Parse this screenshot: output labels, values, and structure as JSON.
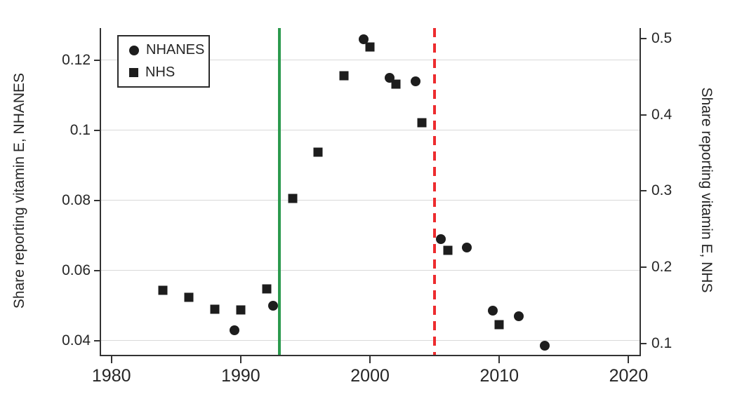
{
  "figure": {
    "background": "#ffffff"
  },
  "legend": {
    "position": "top-left-inside",
    "items": [
      {
        "marker": "circle",
        "label": "NHANES"
      },
      {
        "marker": "square",
        "label": "NHS"
      }
    ]
  },
  "colors": {
    "marker": "#1d1d1d",
    "axis": "#333333",
    "gridline": "#d9d9d9",
    "text": "#262626",
    "green_line": "#2c9a4e",
    "red_line": "#ed2c2f"
  },
  "chart_data": {
    "type": "scatter",
    "grid": "horizontal-at-left-axis-ticks",
    "legend_position": "top-left inside plot",
    "x_axis": {
      "label": "",
      "range": [
        1979.2,
        2020.9
      ],
      "ticks": [
        {
          "v": 1980,
          "label": "1980"
        },
        {
          "v": 1990,
          "label": "1990"
        },
        {
          "v": 2000,
          "label": "2000"
        },
        {
          "v": 2010,
          "label": "2010"
        },
        {
          "v": 2020,
          "label": "2020"
        }
      ]
    },
    "left_axis": {
      "label": "Share reporting vitamin E, NHANES",
      "range": [
        0.0355,
        0.1291
      ],
      "ticks": [
        {
          "v": 0.04,
          "label": "0.04"
        },
        {
          "v": 0.06,
          "label": "0.06"
        },
        {
          "v": 0.08,
          "label": "0.08"
        },
        {
          "v": 0.1,
          "label": "0.1"
        },
        {
          "v": 0.12,
          "label": "0.12"
        }
      ]
    },
    "right_axis": {
      "label": "Share reporting vitamin E, NHS",
      "range": [
        0.0834,
        0.5138
      ],
      "ticks": [
        {
          "v": 0.1,
          "label": "0.1"
        },
        {
          "v": 0.2,
          "label": "0.2"
        },
        {
          "v": 0.3,
          "label": "0.3"
        },
        {
          "v": 0.4,
          "label": "0.4"
        },
        {
          "v": 0.5,
          "label": "0.5"
        }
      ]
    },
    "series": [
      {
        "name": "NHANES",
        "marker": "circle",
        "axis": "left",
        "points": [
          [
            1989.5,
            0.043
          ],
          [
            1992.5,
            0.05
          ],
          [
            1999.5,
            0.126
          ],
          [
            2001.5,
            0.115
          ],
          [
            2003.5,
            0.114
          ],
          [
            2005.5,
            0.069
          ],
          [
            2007.5,
            0.0665
          ],
          [
            2009.5,
            0.0485
          ],
          [
            2011.5,
            0.047
          ],
          [
            2013.5,
            0.0385
          ]
        ]
      },
      {
        "name": "NHS",
        "marker": "square",
        "axis": "right",
        "points": [
          [
            1984,
            0.17
          ],
          [
            1986,
            0.161
          ],
          [
            1988,
            0.145
          ],
          [
            1990,
            0.144
          ],
          [
            1992,
            0.172
          ],
          [
            1994,
            0.29
          ],
          [
            1996,
            0.351
          ],
          [
            1998,
            0.451
          ],
          [
            2000,
            0.489
          ],
          [
            2002,
            0.44
          ],
          [
            2004,
            0.39
          ],
          [
            2006,
            0.222
          ],
          [
            2010,
            0.125
          ]
        ]
      }
    ],
    "vlines": [
      {
        "x": 1993,
        "style": "solid",
        "color": "#2c9a4e"
      },
      {
        "x": 2005,
        "style": "dashed",
        "color": "#ed2c2f"
      }
    ]
  }
}
